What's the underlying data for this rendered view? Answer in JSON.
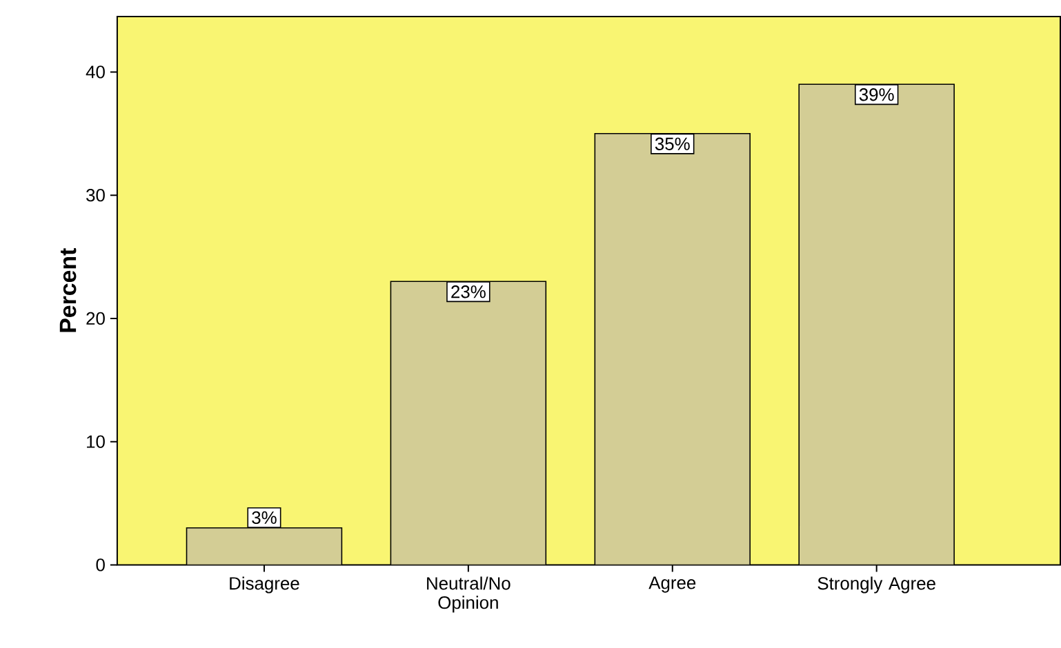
{
  "chart_data": {
    "type": "bar",
    "ylabel": "Percent",
    "categories": [
      "Disagree",
      "Neutral/No Opinion",
      "Agree",
      "Strongly Agree"
    ],
    "values": [
      3,
      23,
      35,
      39
    ],
    "value_labels": [
      "3%",
      "23%",
      "35%",
      "39%"
    ],
    "color": "#d3cd95",
    "ylim": [
      0,
      44.5
    ],
    "yticks": [
      0,
      10,
      20,
      30,
      40
    ],
    "grid": false
  }
}
